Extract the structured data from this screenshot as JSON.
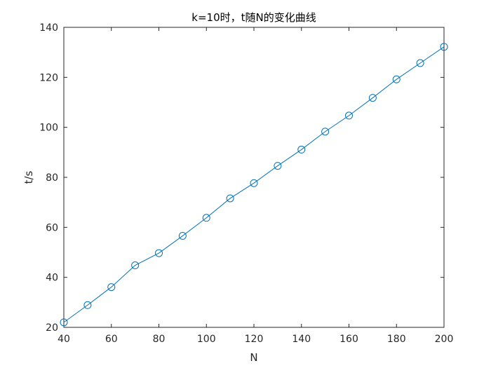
{
  "chart_data": {
    "type": "line",
    "title": "k=10时，t随N的变化曲线",
    "xlabel": "N",
    "ylabel": "t/s",
    "xlim": [
      40,
      200
    ],
    "ylim": [
      20,
      140
    ],
    "x_ticks": [
      40,
      60,
      80,
      100,
      120,
      140,
      160,
      180,
      200
    ],
    "y_ticks": [
      20,
      40,
      60,
      80,
      100,
      120,
      140
    ],
    "grid": false,
    "marker": "circle",
    "color": "#0072BD",
    "series": [
      {
        "x": [
          40,
          50,
          60,
          70,
          80,
          90,
          100,
          110,
          120,
          130,
          140,
          150,
          160,
          170,
          180,
          190,
          200
        ],
        "y": [
          22.0,
          28.9,
          36.1,
          44.8,
          49.7,
          56.6,
          63.8,
          71.6,
          77.7,
          84.6,
          91.1,
          98.3,
          104.7,
          111.8,
          119.2,
          125.7,
          132.2
        ]
      }
    ]
  }
}
